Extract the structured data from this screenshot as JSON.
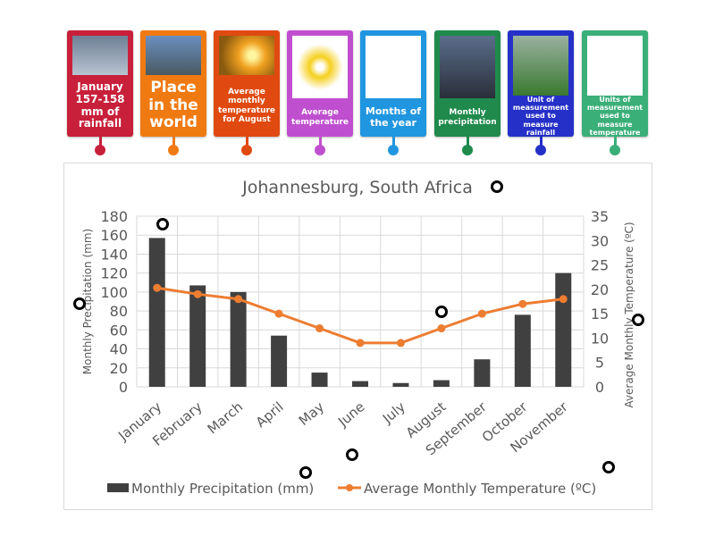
{
  "cards": [
    {
      "label": "January 157-158 mm of rainfall",
      "color": "#c8203a",
      "image": "rain-photo"
    },
    {
      "label": "Place in the world",
      "color": "#f07a12",
      "image": "city-skyline-photo"
    },
    {
      "label": "Average monthly temperature for August",
      "color": "#e04a10",
      "image": "sun-photo"
    },
    {
      "label": "Average temperature",
      "color": "#c04fd0",
      "image": "sun-thermometer-image"
    },
    {
      "label": "Months of the year",
      "color": "#2196e0",
      "image": "months-chart-image"
    },
    {
      "label": "Monthly precipitation",
      "color": "#1f8a4c",
      "image": "rainy-street-photo"
    },
    {
      "label": "Unit of measurement used to measure rainfall",
      "color": "#2530c8",
      "image": "rain-gauge-photo"
    },
    {
      "label": "Units of measurement used to measure temperature",
      "color": "#3aaf78",
      "image": "thermometer-image"
    }
  ],
  "chart_data": {
    "type": "bar+line",
    "title": "Johannesburg, South Africa",
    "categories": [
      "January",
      "February",
      "March",
      "April",
      "May",
      "June",
      "July",
      "August",
      "September",
      "October",
      "November"
    ],
    "series": [
      {
        "name": "Monthly Precipitation  (mm)",
        "type": "bar",
        "axis": "left",
        "color": "#404040",
        "values": [
          157,
          107,
          100,
          54,
          15,
          6,
          4,
          7,
          29,
          76,
          120
        ]
      },
      {
        "name": "Average Monthly  Temperature (ºC)",
        "type": "line",
        "axis": "right",
        "color": "#ed7d31",
        "values": [
          20.3,
          19,
          18,
          15,
          12,
          9,
          9,
          12,
          15,
          17,
          18
        ]
      }
    ],
    "ylabel": "Monthly Precipitation  (mm)",
    "y2label": "Average Monthly  Temperature (ºC)",
    "ylim": [
      0,
      180
    ],
    "yticks": [
      "0",
      "20",
      "40",
      "60",
      "80",
      "100",
      "120",
      "140",
      "160",
      "180"
    ],
    "y2lim": [
      0,
      35
    ],
    "y2ticks": [
      "0",
      "5",
      "10",
      "15",
      "20",
      "25",
      "30",
      "35"
    ],
    "grid": true,
    "legend": "bottom"
  }
}
